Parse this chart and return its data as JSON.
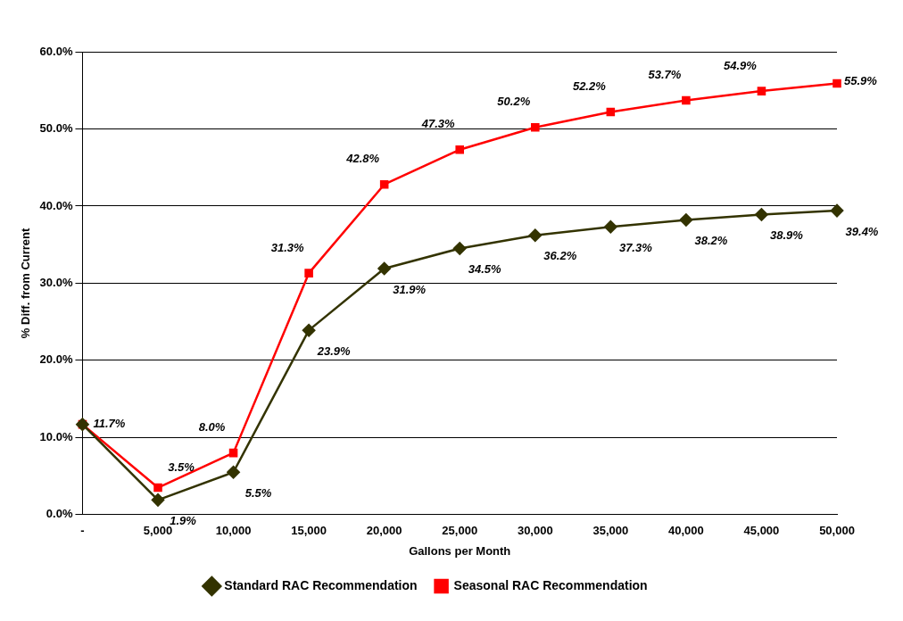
{
  "chart_data": {
    "type": "line",
    "xlabel": "Gallons per Month",
    "ylabel": "% Diff. from Current",
    "categories": [
      "-",
      "5,000",
      "10,000",
      "15,000",
      "20,000",
      "25,000",
      "30,000",
      "35,000",
      "40,000",
      "45,000",
      "50,000"
    ],
    "series": [
      {
        "name": "Standard RAC Recommendation",
        "color": "#333300",
        "marker": "diamond",
        "values": [
          11.7,
          1.9,
          5.5,
          23.9,
          31.9,
          34.5,
          36.2,
          37.3,
          38.2,
          38.9,
          39.4
        ],
        "value_labels": [
          null,
          "1.9%",
          "5.5%",
          "23.9%",
          "31.9%",
          "34.5%",
          "36.2%",
          "37.3%",
          "38.2%",
          "38.9%",
          "39.4%"
        ]
      },
      {
        "name": "Seasonal RAC Recommendation",
        "color": "#ff0000",
        "marker": "square",
        "values": [
          11.7,
          3.5,
          8.0,
          31.3,
          42.8,
          47.3,
          50.2,
          52.2,
          53.7,
          54.9,
          55.9
        ],
        "value_labels": [
          "11.7%",
          "3.5%",
          "8.0%",
          "31.3%",
          "42.8%",
          "47.3%",
          "50.2%",
          "52.2%",
          "53.7%",
          "54.9%",
          "55.9%"
        ]
      }
    ],
    "ylim": [
      0,
      60
    ],
    "yticks": [
      {
        "value": 0,
        "label": "0.0%"
      },
      {
        "value": 10,
        "label": "10.0%"
      },
      {
        "value": 20,
        "label": "20.0%"
      },
      {
        "value": 30,
        "label": "30.0%"
      },
      {
        "value": 40,
        "label": "40.0%"
      },
      {
        "value": 50,
        "label": "50.0%"
      },
      {
        "value": 60,
        "label": "60.0%"
      }
    ],
    "grid": "y",
    "legend": "bottom",
    "line_style": "solid"
  }
}
